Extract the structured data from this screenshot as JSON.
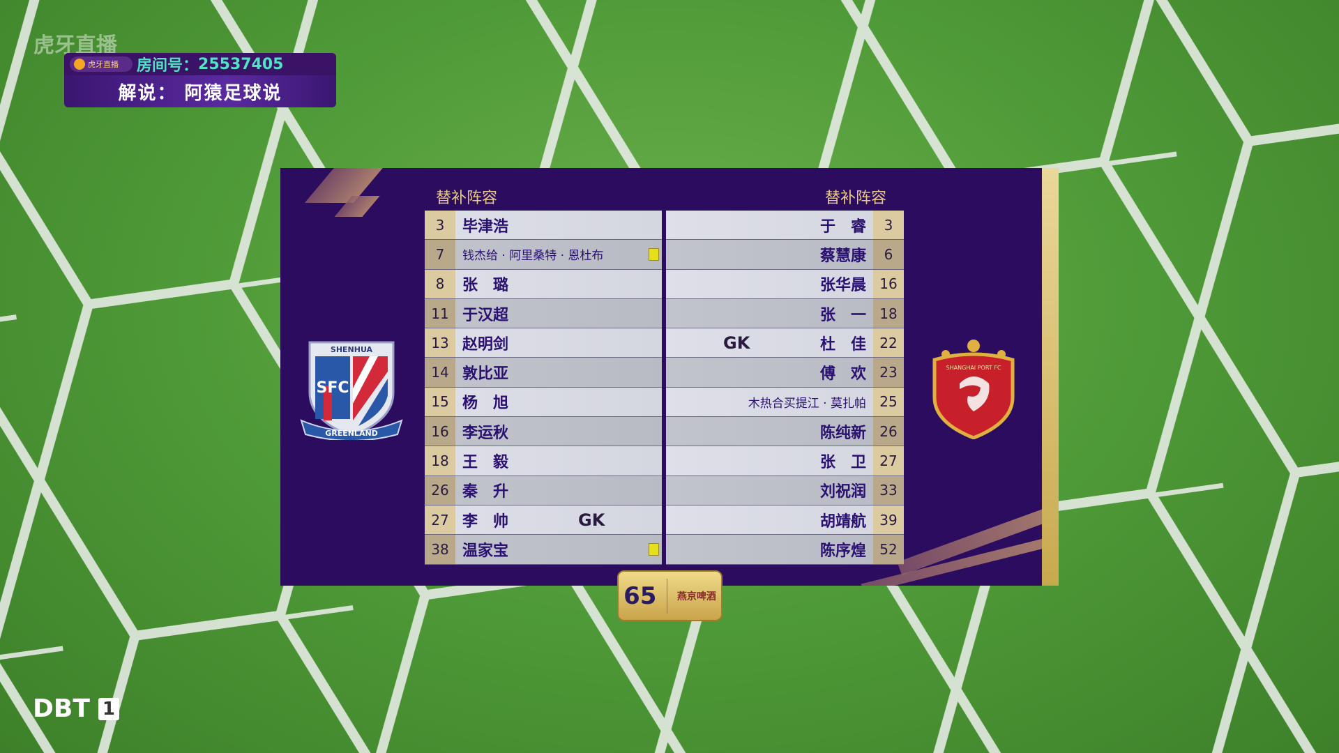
{
  "overlay": {
    "watermark": "虎牙直播",
    "huya_badge": "虎牙直播",
    "room_label": "房间号：",
    "room_number": "25537405",
    "commentary": "解说：  阿猿足球说"
  },
  "panel": {
    "left_header": "替补阵容",
    "right_header": "替补阵容",
    "left_team": {
      "crest_text_top": "SHENHUA",
      "crest_text_mid": "SFC",
      "crest_text_bottom": "GREENLAND",
      "players": [
        {
          "num": "3",
          "name": "毕津浩"
        },
        {
          "num": "7",
          "name": "钱杰给 · 阿里桑特 · 恩杜布",
          "small": true,
          "card": "yellow"
        },
        {
          "num": "8",
          "name": "张　璐"
        },
        {
          "num": "11",
          "name": "于汉超"
        },
        {
          "num": "13",
          "name": "赵明剑"
        },
        {
          "num": "14",
          "name": "敦比亚"
        },
        {
          "num": "15",
          "name": "杨　旭"
        },
        {
          "num": "16",
          "name": "李运秋"
        },
        {
          "num": "18",
          "name": "王　毅"
        },
        {
          "num": "26",
          "name": "秦　升"
        },
        {
          "num": "27",
          "name": "李　帅",
          "role": "GK"
        },
        {
          "num": "38",
          "name": "温家宝",
          "card": "yellow"
        }
      ]
    },
    "right_team": {
      "crest_text": "SHANGHAI PORT FC",
      "players": [
        {
          "num": "3",
          "name": "于　睿"
        },
        {
          "num": "6",
          "name": "蔡慧康"
        },
        {
          "num": "16",
          "name": "张华晨"
        },
        {
          "num": "18",
          "name": "张　一"
        },
        {
          "num": "22",
          "name": "杜　佳",
          "role": "GK"
        },
        {
          "num": "23",
          "name": "傅　欢"
        },
        {
          "num": "25",
          "name": "木热合买提江 · 莫扎帕",
          "small": true
        },
        {
          "num": "26",
          "name": "陈纯新"
        },
        {
          "num": "27",
          "name": "张　卫"
        },
        {
          "num": "33",
          "name": "刘祝润"
        },
        {
          "num": "39",
          "name": "胡靖航"
        },
        {
          "num": "52",
          "name": "陈序煌"
        }
      ]
    }
  },
  "sponsor_badge": {
    "left": "65",
    "right": "燕京啤酒"
  },
  "channel": {
    "name": "DBT",
    "number": "1"
  },
  "colors": {
    "panel": "#2c0c5e",
    "gold": "#d9c070",
    "name_text": "#2a1070",
    "yellow_card": "#e4e01a",
    "room_number": "#52e3c4"
  }
}
